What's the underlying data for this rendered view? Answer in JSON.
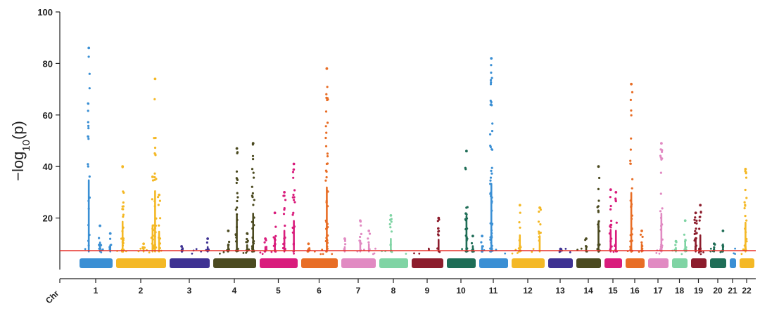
{
  "chart_data": {
    "type": "scatter",
    "subtype": "manhattan",
    "title": "",
    "xlabel": "Chr",
    "ylabel": "−log10(p)",
    "ylabel_parts": {
      "prefix": "−log",
      "sub": "10",
      "suffix": "(p)"
    },
    "ylim": [
      0,
      100
    ],
    "yticks": [
      20,
      40,
      60,
      80,
      100
    ],
    "threshold": {
      "value": 7.3,
      "color": "#e8322b"
    },
    "grid": false,
    "legend": "none",
    "chromosomes": [
      {
        "label": "1",
        "color": "#3a8fd4",
        "peaks": [
          {
            "pos": 0.28,
            "max": 86,
            "n": 22
          },
          {
            "pos": 0.62,
            "max": 17,
            "n": 5
          },
          {
            "pos": 0.93,
            "max": 14,
            "n": 4
          }
        ]
      },
      {
        "label": "2",
        "color": "#f4b825",
        "peaks": [
          {
            "pos": 0.13,
            "max": 40,
            "n": 22
          },
          {
            "pos": 0.55,
            "max": 10,
            "n": 4
          },
          {
            "pos": 0.73,
            "max": 36,
            "n": 10
          },
          {
            "pos": 0.78,
            "max": 74,
            "n": 24
          },
          {
            "pos": 0.86,
            "max": 29,
            "n": 10
          }
        ]
      },
      {
        "label": "3",
        "color": "#3e3192",
        "peaks": [
          {
            "pos": 0.3,
            "max": 9,
            "n": 4
          },
          {
            "pos": 0.95,
            "max": 12,
            "n": 4
          }
        ]
      },
      {
        "label": "4",
        "color": "#4b4a20",
        "peaks": [
          {
            "pos": 0.35,
            "max": 15,
            "n": 6
          },
          {
            "pos": 0.55,
            "max": 47,
            "n": 22
          },
          {
            "pos": 0.79,
            "max": 14,
            "n": 5
          },
          {
            "pos": 0.93,
            "max": 49,
            "n": 28
          }
        ]
      },
      {
        "label": "5",
        "color": "#d91c7c",
        "peaks": [
          {
            "pos": 0.15,
            "max": 12,
            "n": 5
          },
          {
            "pos": 0.4,
            "max": 22,
            "n": 10
          },
          {
            "pos": 0.65,
            "max": 30,
            "n": 14
          },
          {
            "pos": 0.9,
            "max": 41,
            "n": 18
          }
        ]
      },
      {
        "label": "6",
        "color": "#e86d25",
        "peaks": [
          {
            "pos": 0.2,
            "max": 10,
            "n": 4
          },
          {
            "pos": 0.7,
            "max": 78,
            "n": 40
          }
        ]
      },
      {
        "label": "7",
        "color": "#e18ac2",
        "peaks": [
          {
            "pos": 0.1,
            "max": 12,
            "n": 5
          },
          {
            "pos": 0.55,
            "max": 19,
            "n": 8
          },
          {
            "pos": 0.8,
            "max": 15,
            "n": 5
          }
        ]
      },
      {
        "label": "8",
        "color": "#7fd4a4",
        "peaks": [
          {
            "pos": 0.4,
            "max": 21,
            "n": 9
          }
        ]
      },
      {
        "label": "9",
        "color": "#8c1c2c",
        "peaks": [
          {
            "pos": 0.85,
            "max": 20,
            "n": 9
          }
        ]
      },
      {
        "label": "10",
        "color": "#1e6d56",
        "peaks": [
          {
            "pos": 0.68,
            "max": 46,
            "n": 22
          },
          {
            "pos": 0.9,
            "max": 13,
            "n": 4
          }
        ]
      },
      {
        "label": "11",
        "color": "#3a8fd4",
        "peaks": [
          {
            "pos": 0.1,
            "max": 13,
            "n": 4
          },
          {
            "pos": 0.42,
            "max": 82,
            "n": 50
          }
        ]
      },
      {
        "label": "12",
        "color": "#f4b825",
        "peaks": [
          {
            "pos": 0.25,
            "max": 25,
            "n": 10
          },
          {
            "pos": 0.85,
            "max": 24,
            "n": 10
          }
        ]
      },
      {
        "label": "13",
        "color": "#3e3192",
        "peaks": [
          {
            "pos": 0.5,
            "max": 8,
            "n": 3
          }
        ]
      },
      {
        "label": "14",
        "color": "#4b4a20",
        "peaks": [
          {
            "pos": 0.4,
            "max": 12,
            "n": 4
          },
          {
            "pos": 0.9,
            "max": 40,
            "n": 18
          }
        ]
      },
      {
        "label": "15",
        "color": "#d91c7c",
        "peaks": [
          {
            "pos": 0.35,
            "max": 31,
            "n": 12
          },
          {
            "pos": 0.65,
            "max": 30,
            "n": 8
          }
        ]
      },
      {
        "label": "16",
        "color": "#e86d25",
        "peaks": [
          {
            "pos": 0.3,
            "max": 72,
            "n": 28
          },
          {
            "pos": 0.85,
            "max": 15,
            "n": 5
          }
        ]
      },
      {
        "label": "17",
        "color": "#e18ac2",
        "peaks": [
          {
            "pos": 0.65,
            "max": 49,
            "n": 26
          }
        ]
      },
      {
        "label": "18",
        "color": "#7fd4a4",
        "peaks": [
          {
            "pos": 0.25,
            "max": 11,
            "n": 4
          },
          {
            "pos": 0.85,
            "max": 19,
            "n": 8
          }
        ]
      },
      {
        "label": "19",
        "color": "#8c1c2c",
        "peaks": [
          {
            "pos": 0.3,
            "max": 22,
            "n": 16
          },
          {
            "pos": 0.6,
            "max": 25,
            "n": 14
          }
        ]
      },
      {
        "label": "20",
        "color": "#1e6d56",
        "peaks": [
          {
            "pos": 0.25,
            "max": 10,
            "n": 4
          },
          {
            "pos": 0.8,
            "max": 15,
            "n": 6
          }
        ]
      },
      {
        "label": "21",
        "color": "#3a8fd4",
        "peaks": []
      },
      {
        "label": "22",
        "color": "#f4b825",
        "peaks": [
          {
            "pos": 0.4,
            "max": 39,
            "n": 20
          }
        ]
      }
    ]
  }
}
